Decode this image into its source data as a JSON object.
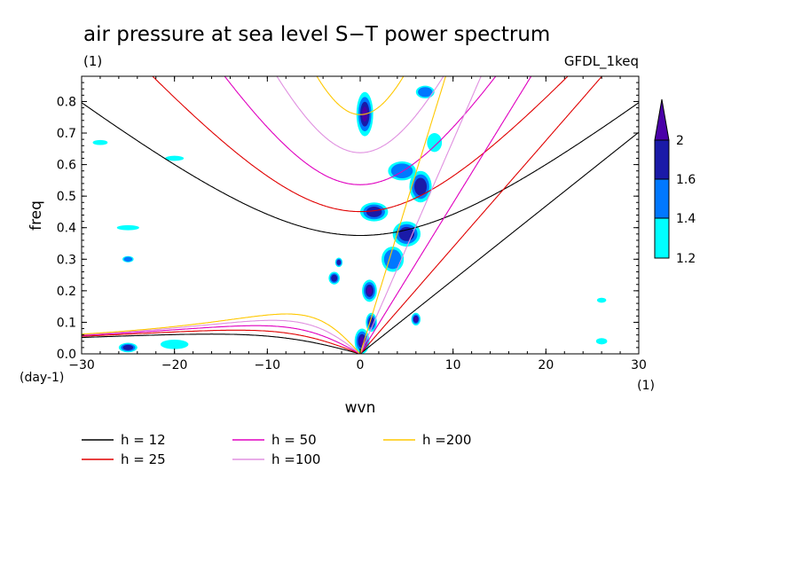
{
  "chart_data": {
    "type": "contour",
    "title": "air pressure at sea level S−T power spectrum",
    "subtitle_left": "(1)",
    "subtitle_right": "GFDL_1keq",
    "xlabel": "wvn",
    "ylabel": "freq",
    "x_unit": "(1)",
    "y_unit": "(day-1)",
    "xlim": [
      -30,
      30
    ],
    "ylim": [
      0,
      0.88
    ],
    "x_ticks": [
      -30,
      -20,
      -10,
      0,
      10,
      20,
      30
    ],
    "y_ticks": [
      "0.0",
      "0.1",
      "0.2",
      "0.3",
      "0.4",
      "0.5",
      "0.6",
      "0.7",
      "0.8"
    ],
    "colorbar": {
      "levels": [
        "1.2",
        "1.4",
        "1.6",
        "2"
      ],
      "colors": [
        "#00ffff",
        "#0078ff",
        "#1a1aa8",
        "#4a00a8"
      ]
    },
    "series": [
      {
        "name": "h = 12",
        "h": 12,
        "color": "#000000"
      },
      {
        "name": "h = 25",
        "h": 25,
        "color": "#e00000"
      },
      {
        "name": "h = 50",
        "h": 50,
        "color": "#e000c0"
      },
      {
        "name": "h =100",
        "h": 100,
        "color": "#e090e0"
      },
      {
        "name": "h =200",
        "h": 200,
        "color": "#ffc800"
      }
    ],
    "blobs": [
      {
        "x": 0.5,
        "y": 0.76,
        "rx": 0.9,
        "ry": 0.07,
        "level": 4
      },
      {
        "x": 1.5,
        "y": 0.45,
        "rx": 1.5,
        "ry": 0.03,
        "level": 3
      },
      {
        "x": 1.0,
        "y": 0.2,
        "rx": 0.8,
        "ry": 0.035,
        "level": 4
      },
      {
        "x": -2.8,
        "y": 0.24,
        "rx": 0.6,
        "ry": 0.02,
        "level": 3
      },
      {
        "x": -2.3,
        "y": 0.29,
        "rx": 0.4,
        "ry": 0.015,
        "level": 3
      },
      {
        "x": 0.2,
        "y": 0.04,
        "rx": 0.8,
        "ry": 0.04,
        "level": 4
      },
      {
        "x": 1.2,
        "y": 0.1,
        "rx": 0.6,
        "ry": 0.03,
        "level": 3
      },
      {
        "x": 6.0,
        "y": 0.11,
        "rx": 0.5,
        "ry": 0.02,
        "level": 4
      },
      {
        "x": 5.0,
        "y": 0.38,
        "rx": 1.5,
        "ry": 0.04,
        "level": 3
      },
      {
        "x": 6.5,
        "y": 0.53,
        "rx": 1.2,
        "ry": 0.05,
        "level": 3
      },
      {
        "x": 7.0,
        "y": 0.83,
        "rx": 1.0,
        "ry": 0.02,
        "level": 2
      },
      {
        "x": 4.5,
        "y": 0.58,
        "rx": 1.5,
        "ry": 0.03,
        "level": 2
      },
      {
        "x": 3.5,
        "y": 0.3,
        "rx": 1.2,
        "ry": 0.04,
        "level": 2
      },
      {
        "x": 8.0,
        "y": 0.67,
        "rx": 0.8,
        "ry": 0.03,
        "level": 1
      },
      {
        "x": -25.0,
        "y": 0.02,
        "rx": 1.0,
        "ry": 0.015,
        "level": 3
      },
      {
        "x": -25.0,
        "y": 0.3,
        "rx": 0.6,
        "ry": 0.01,
        "level": 2
      },
      {
        "x": -25.0,
        "y": 0.4,
        "rx": 1.2,
        "ry": 0.008,
        "level": 1
      },
      {
        "x": -20.0,
        "y": 0.03,
        "rx": 1.5,
        "ry": 0.015,
        "level": 1
      },
      {
        "x": -28.0,
        "y": 0.67,
        "rx": 0.8,
        "ry": 0.008,
        "level": 1
      },
      {
        "x": -20.0,
        "y": 0.62,
        "rx": 1.0,
        "ry": 0.008,
        "level": 1
      },
      {
        "x": 26.0,
        "y": 0.17,
        "rx": 0.5,
        "ry": 0.008,
        "level": 1
      },
      {
        "x": 26.0,
        "y": 0.04,
        "rx": 0.6,
        "ry": 0.01,
        "level": 1
      }
    ]
  }
}
